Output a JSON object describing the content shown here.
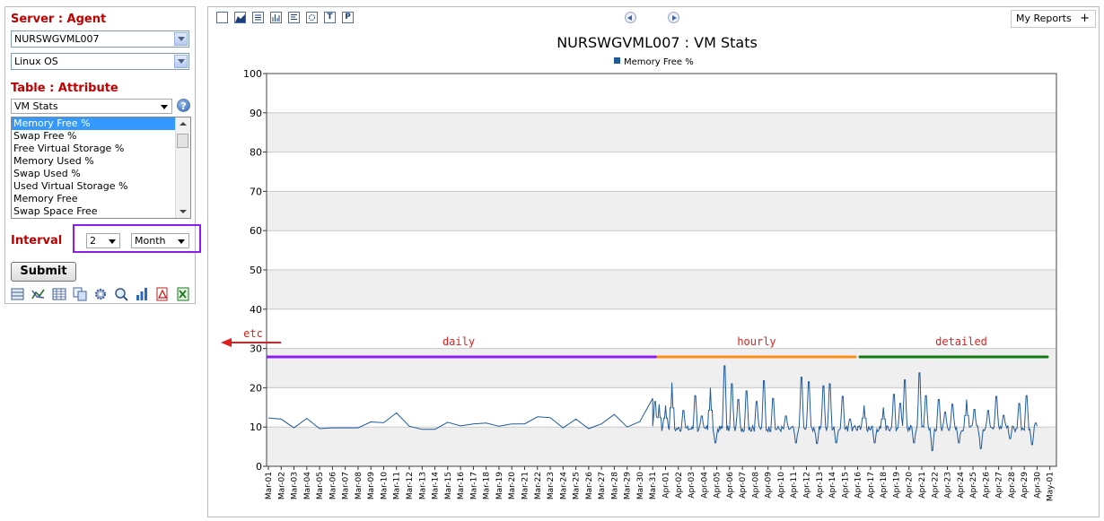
{
  "sidebar": {
    "server_title": "Server : Agent",
    "server_value": "NURSWGVML007",
    "os_value": "Linux OS",
    "table_title": "Table : Attribute",
    "table_value": "VM Stats",
    "help_label": "?",
    "attributes": [
      "Memory Free %",
      "Swap Free %",
      "Free Virtual Storage %",
      "Memory Used %",
      "Swap Used %",
      "Used Virtual Storage %",
      "Memory Free",
      "Swap Space Free"
    ],
    "interval_label": "Interval",
    "interval_count": "2",
    "interval_unit": "Month",
    "submit_label": "Submit",
    "tools": [
      "table-icon",
      "line-chart-icon",
      "grid-icon",
      "copy-icon",
      "settings-icon",
      "zoom-icon",
      "bar-chart-icon",
      "pdf-icon",
      "excel-icon"
    ]
  },
  "toolbar": {
    "buttons": [
      "square-icon",
      "area-chart-icon",
      "stacked-icon",
      "bar-icon",
      "list-icon",
      "scatter-icon",
      "T",
      "P"
    ],
    "my_reports_label": "My Reports",
    "my_reports_plus": "+"
  },
  "annotations": {
    "etc_label": "etc",
    "daily_label": "daily",
    "hourly_label": "hourly",
    "detailed_label": "detailed",
    "colors": {
      "daily": "#8b1df0",
      "hourly": "#ff8c1a",
      "detailed": "#137a13",
      "arrow": "#e02020",
      "text": "#e02020"
    }
  },
  "chart_data": {
    "type": "line",
    "title": "NURSWGVML007 : VM Stats",
    "series_name": "Memory Free %",
    "series_color": "#1f5a99",
    "ylim": [
      0,
      100
    ],
    "yticks": [
      0,
      10,
      20,
      30,
      40,
      50,
      60,
      70,
      80,
      90,
      100
    ],
    "grid": true,
    "legend": "top-center",
    "x_tick_labels": [
      "Mar-01",
      "Mar-02",
      "Mar-03",
      "Mar-04",
      "Mar-05",
      "Mar-06",
      "Mar-07",
      "Mar-08",
      "Mar-09",
      "Mar-10",
      "Mar-11",
      "Mar-12",
      "Mar-13",
      "Mar-14",
      "Mar-15",
      "Mar-16",
      "Mar-17",
      "Mar-18",
      "Mar-19",
      "Mar-20",
      "Mar-21",
      "Mar-22",
      "Mar-23",
      "Mar-24",
      "Mar-25",
      "Mar-26",
      "Mar-27",
      "Mar-28",
      "Mar-29",
      "Mar-30",
      "Mar-31",
      "Apr-01",
      "Apr-02",
      "Apr-03",
      "Apr-04",
      "Apr-05",
      "Apr-06",
      "Apr-07",
      "Apr-08",
      "Apr-09",
      "Apr-10",
      "Apr-11",
      "Apr-12",
      "Apr-13",
      "Apr-14",
      "Apr-15",
      "Apr-16",
      "Apr-17",
      "Apr-18",
      "Apr-19",
      "Apr-20",
      "Apr-21",
      "Apr-22",
      "Apr-23",
      "Apr-24",
      "Apr-25",
      "Apr-26",
      "Apr-27",
      "Apr-28",
      "Apr-29",
      "Apr-30",
      "May-01"
    ],
    "daily_values": [
      12.3,
      12.0,
      9.8,
      12.2,
      9.6,
      9.8,
      9.8,
      9.8,
      11.3,
      11.1,
      13.6,
      10.2,
      9.4,
      9.4,
      11.2,
      10.3,
      10.8,
      11.0,
      10.2,
      10.8,
      10.8,
      12.6,
      12.4,
      9.8,
      12.0,
      9.6,
      10.8,
      13.2,
      10.0,
      11.4,
      17.3
    ],
    "hourly_range": [
      "Mar-31",
      "Apr-16"
    ],
    "hourly_baseline": 9.6,
    "hourly_spikes": [
      {
        "day": 0.2,
        "v": 16.5
      },
      {
        "day": 0.5,
        "v": 15.8
      },
      {
        "day": 1.0,
        "v": 15.5
      },
      {
        "day": 1.5,
        "v": 21.3
      },
      {
        "day": 2.4,
        "v": 14.2
      },
      {
        "day": 3.3,
        "v": 18.0
      },
      {
        "day": 3.8,
        "v": 12.8
      },
      {
        "day": 4.5,
        "v": 20.0
      },
      {
        "day": 4.9,
        "v": 6.0
      },
      {
        "day": 5.6,
        "v": 25.6
      },
      {
        "day": 6.2,
        "v": 21.0
      },
      {
        "day": 6.7,
        "v": 17.0
      },
      {
        "day": 7.3,
        "v": 19.2
      },
      {
        "day": 8.1,
        "v": 16.5
      },
      {
        "day": 8.7,
        "v": 21.8
      },
      {
        "day": 9.4,
        "v": 17.3
      },
      {
        "day": 10.4,
        "v": 12.8
      },
      {
        "day": 11.2,
        "v": 6.0
      },
      {
        "day": 11.6,
        "v": 22.7
      },
      {
        "day": 12.2,
        "v": 21.5
      },
      {
        "day": 12.8,
        "v": 5.8
      },
      {
        "day": 13.3,
        "v": 20.5
      },
      {
        "day": 13.8,
        "v": 21.0
      },
      {
        "day": 14.3,
        "v": 6.0
      },
      {
        "day": 14.8,
        "v": 17.8
      },
      {
        "day": 15.4,
        "v": 12.0
      }
    ],
    "detailed_range": [
      "Apr-16",
      "Apr-30"
    ],
    "detailed_baseline": 9.6,
    "detailed_spikes": [
      {
        "day": 0.5,
        "v": 15.5
      },
      {
        "day": 1.3,
        "v": 6.0
      },
      {
        "day": 2.0,
        "v": 15.0
      },
      {
        "day": 2.8,
        "v": 18.3
      },
      {
        "day": 3.3,
        "v": 16.0
      },
      {
        "day": 3.7,
        "v": 22.0
      },
      {
        "day": 4.4,
        "v": 6.0
      },
      {
        "day": 4.8,
        "v": 23.8
      },
      {
        "day": 5.3,
        "v": 18.0
      },
      {
        "day": 5.8,
        "v": 4.0
      },
      {
        "day": 6.3,
        "v": 17.0
      },
      {
        "day": 6.8,
        "v": 13.8
      },
      {
        "day": 7.4,
        "v": 15.8
      },
      {
        "day": 7.9,
        "v": 6.0
      },
      {
        "day": 8.5,
        "v": 17.0
      },
      {
        "day": 9.1,
        "v": 14.5
      },
      {
        "day": 9.6,
        "v": 4.5
      },
      {
        "day": 10.2,
        "v": 14.2
      },
      {
        "day": 10.8,
        "v": 17.8
      },
      {
        "day": 11.4,
        "v": 13.0
      },
      {
        "day": 11.9,
        "v": 7.0
      },
      {
        "day": 12.6,
        "v": 16.0
      },
      {
        "day": 13.2,
        "v": 18.0
      },
      {
        "day": 13.6,
        "v": 5.5
      },
      {
        "day": 13.9,
        "v": 11.0
      }
    ]
  }
}
